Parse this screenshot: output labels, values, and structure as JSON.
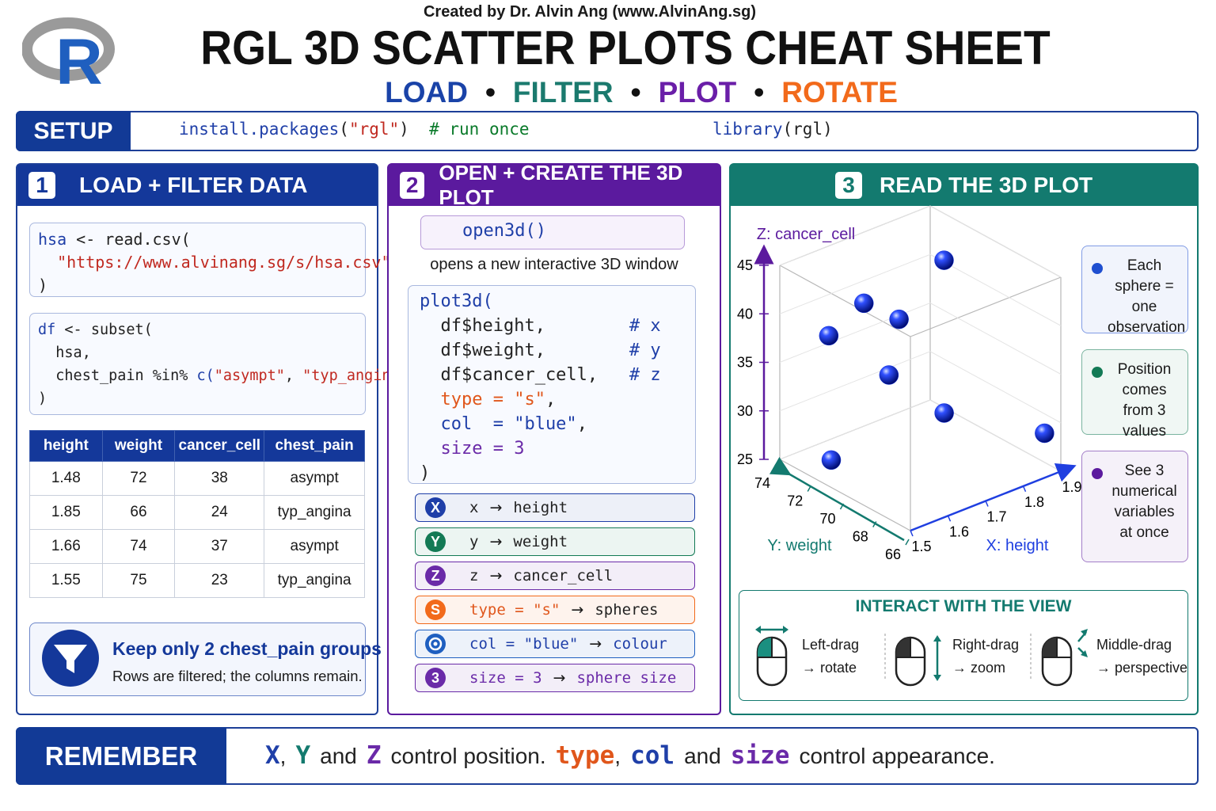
{
  "header": {
    "credit": "Created by Dr. Alvin Ang (www.AlvinAng.sg)",
    "logo": "R",
    "title": "RGL 3D SCATTER PLOTS CHEAT SHEET",
    "separator": "•",
    "steps": [
      {
        "text": "LOAD",
        "color": "#1a43a8"
      },
      {
        "text": "FILTER",
        "color": "#1b7a6e"
      },
      {
        "text": "PLOT",
        "color": "#6a1ea8"
      },
      {
        "text": "ROTATE",
        "color": "#f26a1b"
      }
    ]
  },
  "setup": {
    "label": "SETUP",
    "code": [
      [
        {
          "text": "install.packages",
          "style": "fn"
        },
        {
          "text": "(",
          "style": "plain"
        },
        {
          "text": "\"rgl\"",
          "style": "str"
        },
        {
          "text": ")",
          "style": "plain"
        },
        {
          "text": "  # run once",
          "style": "comment"
        }
      ],
      [
        {
          "text": "library",
          "style": "fn"
        },
        {
          "text": "(rgl)",
          "style": "plain"
        }
      ]
    ]
  },
  "load": {
    "number": "1",
    "title": "LOAD + FILTER DATA",
    "code_blocks": [
      [
        [
          {
            "text": "hsa",
            "style": "fn"
          },
          {
            "text": " <- read.csv(",
            "style": "plain"
          }
        ],
        [
          {
            "text": "  \"https://www.alvinang.sg/s/hsa.csv\"",
            "style": "str"
          }
        ],
        [
          {
            "text": ")",
            "style": "plain"
          }
        ]
      ],
      [
        [
          {
            "text": "df",
            "style": "fn"
          },
          {
            "text": " <- subset(",
            "style": "plain"
          }
        ],
        [
          {
            "text": "  hsa,",
            "style": "plain"
          }
        ],
        [
          {
            "text": "  chest_pain %in% ",
            "style": "plain"
          },
          {
            "text": "c(",
            "style": "fn"
          },
          {
            "text": "\"asympt\"",
            "style": "str"
          },
          {
            "text": ", ",
            "style": "plain"
          },
          {
            "text": "\"typ_angina\"",
            "style": "str"
          },
          {
            "text": ")",
            "style": "plain"
          }
        ],
        [
          {
            "text": ")",
            "style": "plain"
          }
        ]
      ]
    ],
    "table": {
      "header": [
        "height",
        "weight",
        "cancer_cell",
        "chest_pain"
      ],
      "rows": [
        [
          1.48,
          72,
          38,
          "asympt"
        ],
        [
          1.85,
          66,
          24,
          "typ_angina"
        ],
        [
          1.66,
          74,
          37,
          "asympt"
        ],
        [
          1.55,
          75,
          23,
          "typ_angina"
        ]
      ]
    },
    "callout": {
      "title": "Keep only 2 chest_pain groups",
      "text": "Rows are filtered; the columns remain."
    }
  },
  "create": {
    "number": "2",
    "title": "OPEN + CREATE THE 3D PLOT",
    "open": [
      {
        "text": "open3d()",
        "style": "fn"
      }
    ],
    "open_note": "opens a new interactive 3D window",
    "plot_code": [
      [
        {
          "text": "plot3d(",
          "style": "fn"
        }
      ],
      [
        {
          "text": "  df$height,        ",
          "style": "plain"
        },
        {
          "text": "# x",
          "style": "fn"
        }
      ],
      [
        {
          "text": "  df$weight,        ",
          "style": "plain"
        },
        {
          "text": "# y",
          "style": "fn"
        }
      ],
      [
        {
          "text": "  df$cancer_cell,   ",
          "style": "plain"
        },
        {
          "text": "# z",
          "style": "fn"
        }
      ],
      [
        {
          "text": "  type = \"s\"",
          "style": "kw"
        },
        {
          "text": ",",
          "style": "plain"
        }
      ],
      [
        {
          "text": "  col  = \"blue\"",
          "style": "fn"
        },
        {
          "text": ",",
          "style": "plain"
        }
      ],
      [
        {
          "text": "  size = 3",
          "style": "purple"
        }
      ],
      [
        {
          "text": ")",
          "style": "plain"
        }
      ]
    ],
    "arrow": "→",
    "mappings": [
      {
        "badge": "X",
        "code": "x",
        "result": "height",
        "color": "#1f3fa8",
        "code_style": "plain",
        "result_style": "plain"
      },
      {
        "badge": "Y",
        "code": "y",
        "result": "weight",
        "color": "#137a55",
        "code_style": "plain",
        "result_style": "plain"
      },
      {
        "badge": "Z",
        "code": "z",
        "result": "cancer_cell",
        "color": "#6a2aa8",
        "code_style": "plain",
        "result_style": "plain"
      },
      {
        "badge": "S",
        "code": "type = \"s\"",
        "result": "spheres",
        "color": "#f26a1b",
        "code_style": "kw",
        "result_style": "plain"
      },
      {
        "code": "col = \"blue\"",
        "result": "colour",
        "color": "#1f5fc0",
        "code_style": "fn",
        "result_style": "fn"
      },
      {
        "badge": "3",
        "code": "size = 3",
        "result": "sphere size",
        "color": "#6a2aa8",
        "code_style": "purple",
        "result_style": "purple"
      }
    ]
  },
  "read": {
    "number": "3",
    "title": "READ THE 3D PLOT",
    "plot": {
      "z_label": "Z: cancer_cell",
      "y_label": "Y: weight",
      "x_label": "X: height",
      "xlim": [
        1.5,
        1.9
      ],
      "xticks": [
        1.5,
        1.6,
        1.7,
        1.8,
        1.9
      ],
      "ylim": [
        66,
        74
      ],
      "yticks": [
        66,
        68,
        70,
        72,
        74
      ],
      "zlim": [
        25,
        45
      ],
      "zticks": [
        25,
        30,
        35,
        40,
        45
      ],
      "color": "#1030e0",
      "points": {
        "x": [
          1.85,
          1.55,
          1.6,
          1.5,
          1.66,
          1.72,
          1.55,
          1.9
        ],
        "y": [
          72,
          70,
          69,
          71,
          71,
          69,
          72,
          67
        ],
        "z": [
          42,
          44,
          42.5,
          40.5,
          34,
          31,
          26,
          28
        ]
      }
    },
    "notes": [
      {
        "text": "Each sphere = one observation",
        "color": "#1f4fd0"
      },
      {
        "text": "Position comes from 3 values",
        "color": "#137a55"
      },
      {
        "text": "See 3 numerical variables at once",
        "color": "#5b1a9e"
      }
    ],
    "interact": {
      "title": "INTERACT WITH THE VIEW",
      "items": [
        {
          "action": "Left-drag",
          "result": "→ rotate"
        },
        {
          "action": "Right-drag",
          "result": "→ zoom"
        },
        {
          "action": "Middle-drag",
          "result": "→ perspective"
        }
      ]
    }
  },
  "remember": {
    "label": "REMEMBER",
    "tokens": [
      {
        "text": "X",
        "style": "fn"
      },
      {
        "text": ",",
        "style": "plain"
      },
      {
        "text": "Y",
        "style": "teal"
      },
      {
        "text": "and",
        "style": "plain"
      },
      {
        "text": "Z",
        "style": "purple"
      },
      {
        "text": "control position.",
        "style": "plain"
      },
      {
        "text": "type",
        "style": "kw"
      },
      {
        "text": ",",
        "style": "plain"
      },
      {
        "text": "col",
        "style": "fn"
      },
      {
        "text": "and",
        "style": "plain"
      },
      {
        "text": "size",
        "style": "purple"
      },
      {
        "text": "control appearance.",
        "style": "plain"
      }
    ]
  }
}
